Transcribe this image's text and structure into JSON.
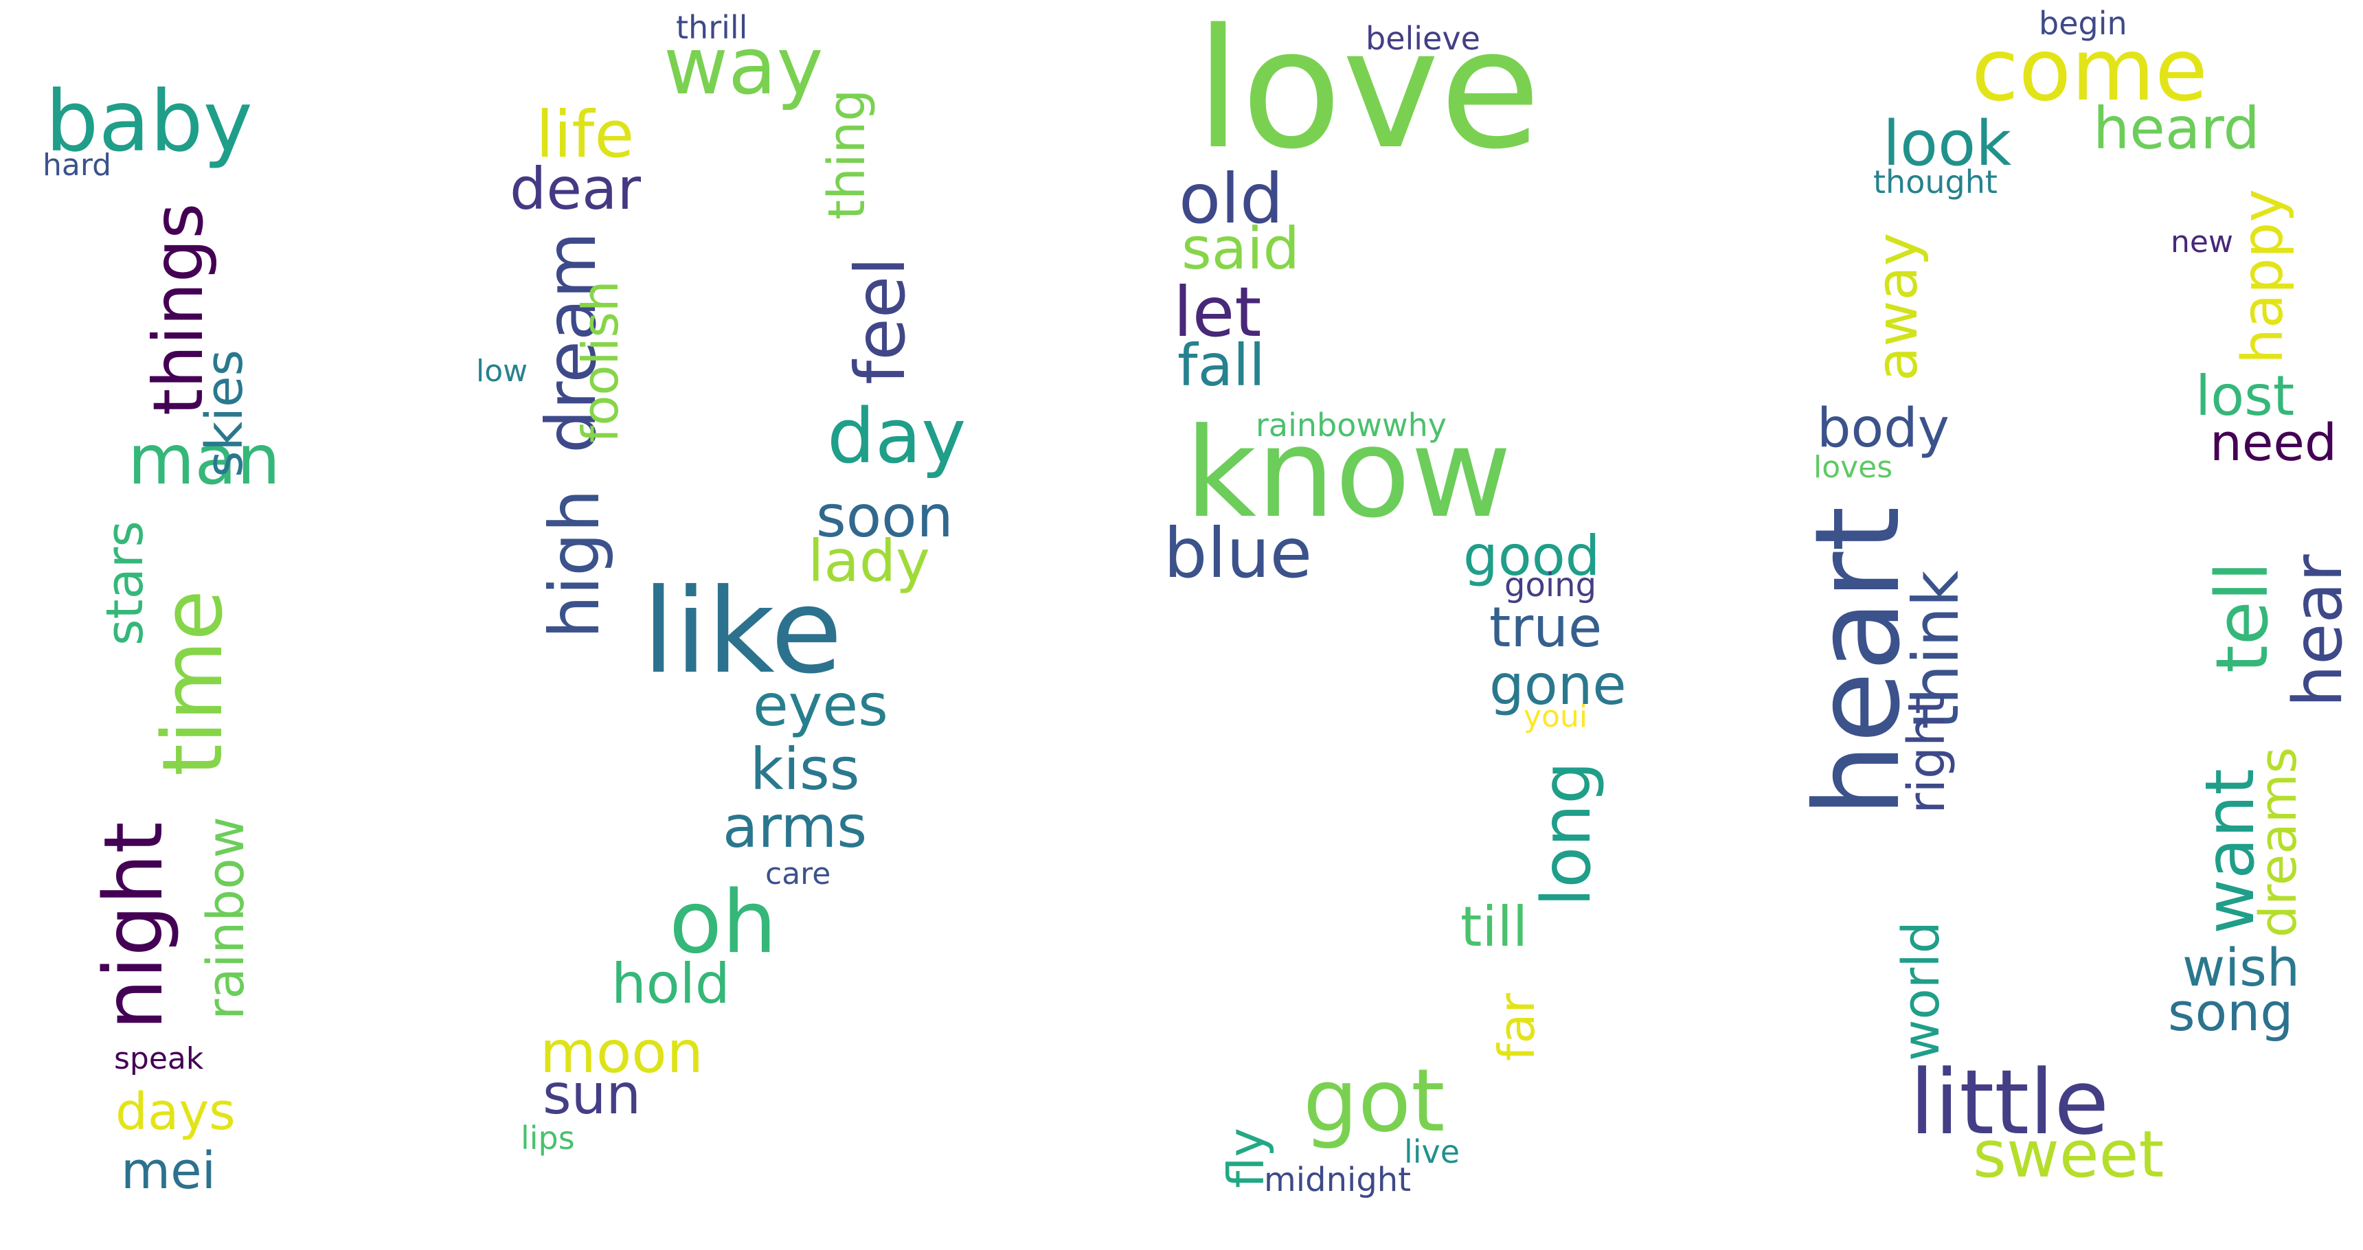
{
  "palette": [
    "#440154",
    "#3b528b",
    "#21918c",
    "#5ec962",
    "#fde725"
  ],
  "words": [
    {
      "text": "love",
      "color": "#7ad151"
    },
    {
      "text": "know",
      "color": "#6ccd5a"
    },
    {
      "text": "like",
      "color": "#2c728e"
    },
    {
      "text": "heart",
      "color": "#3b528b"
    },
    {
      "text": "come",
      "color": "#e2e418"
    },
    {
      "text": "baby",
      "color": "#1f9e89"
    },
    {
      "text": "way",
      "color": "#7ad151"
    },
    {
      "text": "got",
      "color": "#7ad151"
    },
    {
      "text": "oh",
      "color": "#35b779"
    },
    {
      "text": "little",
      "color": "#433e85"
    },
    {
      "text": "time",
      "color": "#86d549"
    },
    {
      "text": "night",
      "color": "#440154"
    },
    {
      "text": "things",
      "color": "#440154"
    },
    {
      "text": "feel",
      "color": "#404688"
    },
    {
      "text": "day",
      "color": "#1f9e89"
    },
    {
      "text": "old",
      "color": "#3e4989"
    },
    {
      "text": "let",
      "color": "#482878"
    },
    {
      "text": "blue",
      "color": "#3b528b"
    },
    {
      "text": "dream",
      "color": "#3e4989"
    },
    {
      "text": "high",
      "color": "#3b528b"
    },
    {
      "text": "man",
      "color": "#35b779"
    },
    {
      "text": "sweet",
      "color": "#b5de2b"
    },
    {
      "text": "tell",
      "color": "#35b779"
    },
    {
      "text": "hear",
      "color": "#3e4989"
    },
    {
      "text": "want",
      "color": "#1f9e89"
    },
    {
      "text": "long",
      "color": "#1f9e89"
    },
    {
      "text": "think",
      "color": "#3b528b"
    },
    {
      "text": "look",
      "color": "#21918c"
    },
    {
      "text": "heard",
      "color": "#6ccd5a"
    },
    {
      "text": "life",
      "color": "#dde318"
    },
    {
      "text": "dear",
      "color": "#443983"
    },
    {
      "text": "said",
      "color": "#86d549"
    },
    {
      "text": "fall",
      "color": "#26828e"
    },
    {
      "text": "eyes",
      "color": "#277f8e"
    },
    {
      "text": "kiss",
      "color": "#2a788e"
    },
    {
      "text": "arms",
      "color": "#2a768e"
    },
    {
      "text": "soon",
      "color": "#31688e"
    },
    {
      "text": "lady",
      "color": "#a0da39"
    },
    {
      "text": "good",
      "color": "#1f9e89"
    },
    {
      "text": "true",
      "color": "#355f8d"
    },
    {
      "text": "gone",
      "color": "#2a788e"
    },
    {
      "text": "till",
      "color": "#4ac16d"
    },
    {
      "text": "hold",
      "color": "#35b779"
    },
    {
      "text": "moon",
      "color": "#dde318"
    },
    {
      "text": "sun",
      "color": "#433e85"
    },
    {
      "text": "body",
      "color": "#3b528b"
    },
    {
      "text": "away",
      "color": "#d2e21b"
    },
    {
      "text": "happy",
      "color": "#e2e418"
    },
    {
      "text": "lost",
      "color": "#35b779"
    },
    {
      "text": "need",
      "color": "#440154"
    },
    {
      "text": "wish",
      "color": "#2a788e"
    },
    {
      "text": "song",
      "color": "#2c728e"
    },
    {
      "text": "dreams",
      "color": "#b5de2b"
    },
    {
      "text": "right",
      "color": "#3e4989"
    },
    {
      "text": "world",
      "color": "#1f9e89"
    },
    {
      "text": "stars",
      "color": "#35b779"
    },
    {
      "text": "skies",
      "color": "#2a788e"
    },
    {
      "text": "rainbow",
      "color": "#6ccd5a"
    },
    {
      "text": "days",
      "color": "#e2e418"
    },
    {
      "text": "mei",
      "color": "#2c728e"
    },
    {
      "text": "thing",
      "color": "#7ad151"
    },
    {
      "text": "foolish",
      "color": "#86d549"
    },
    {
      "text": "far",
      "color": "#e2e418"
    },
    {
      "text": "fly",
      "color": "#22a884"
    },
    {
      "text": "baby-hard",
      "display": "hard",
      "color": "#3b528b"
    },
    {
      "text": "thrill",
      "color": "#3e4989"
    },
    {
      "text": "believe",
      "color": "#433e85"
    },
    {
      "text": "begin",
      "color": "#3e4989"
    },
    {
      "text": "thought",
      "color": "#26828e"
    },
    {
      "text": "new",
      "color": "#482878"
    },
    {
      "text": "low",
      "color": "#26828e"
    },
    {
      "text": "rainbowwhy",
      "color": "#4ac16d"
    },
    {
      "text": "loves",
      "color": "#5ec962"
    },
    {
      "text": "going",
      "color": "#433e85"
    },
    {
      "text": "youi",
      "color": "#fde725"
    },
    {
      "text": "care",
      "color": "#3b528b"
    },
    {
      "text": "speak",
      "color": "#440154"
    },
    {
      "text": "lips",
      "color": "#4ac16d"
    },
    {
      "text": "live",
      "color": "#21918c"
    },
    {
      "text": "midnight",
      "color": "#3e4989"
    }
  ]
}
